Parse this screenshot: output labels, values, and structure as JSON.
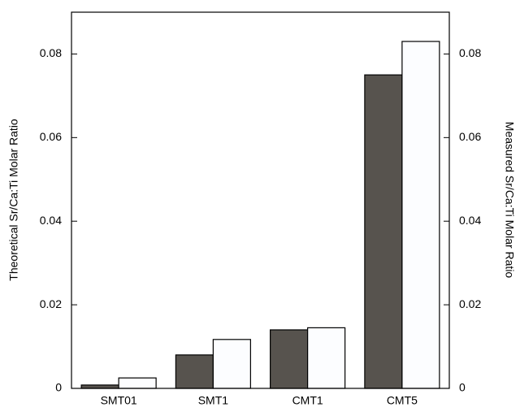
{
  "chart_data": {
    "type": "bar",
    "y_label": "Theoretical Sr/Ca:Ti Molar Ratio",
    "y2_label": "Measured Sr/Ca:Ti Molar Ratio",
    "categories": [
      "SMT01",
      "SMT1",
      "CMT1",
      "CMT5"
    ],
    "series": [
      {
        "color": "#57534e",
        "values": [
          0.0008,
          0.008,
          0.014,
          0.075
        ]
      },
      {
        "color": "#fcfdff",
        "values": [
          0.0025,
          0.0117,
          0.0145,
          0.083
        ],
        "axis": "y2"
      }
    ],
    "ylim": [
      0,
      0.09
    ],
    "yticks": [
      0,
      0.02,
      0.04,
      0.06,
      0.08
    ],
    "y2lim": [
      0,
      0.09
    ],
    "y2ticks": [
      0,
      0.02,
      0.04,
      0.06,
      0.08
    ]
  }
}
